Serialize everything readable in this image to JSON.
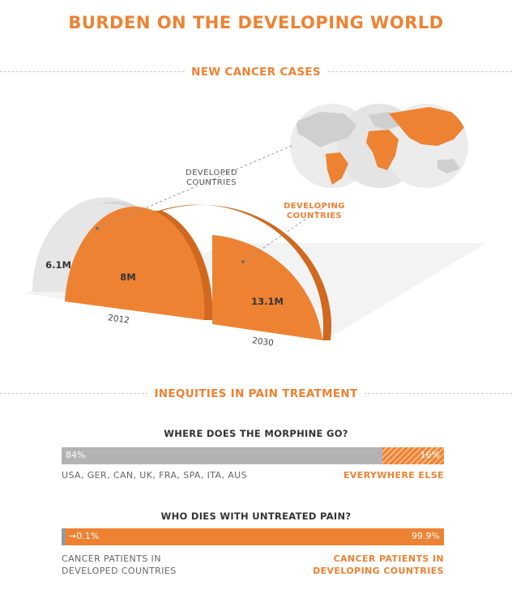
{
  "title": "BURDEN ON THE DEVELOPING WORLD",
  "sections": {
    "cases": "NEW CANCER CASES",
    "pain": "INEQUITIES IN PAIN TREATMENT"
  },
  "colors": {
    "accent": "#ee8233",
    "accent_dark": "#d0691f",
    "developed": "#e6e6e6",
    "bar_gray": "#b3b3b3"
  },
  "chart_data": [
    {
      "type": "semicircle-area",
      "title": "NEW CANCER CASES",
      "labels": {
        "developed": "DEVELOPED COUNTRIES",
        "developing": "DEVELOPING COUNTRIES"
      },
      "years": [
        {
          "year": "2012",
          "developed": 6.1,
          "developing": 8.0,
          "developed_label": "6.1M",
          "developing_label": "8M"
        },
        {
          "year": "2030",
          "developed": null,
          "developing": 13.1,
          "developing_label": "13.1M"
        }
      ]
    },
    {
      "type": "bar",
      "title": "WHERE DOES THE MORPHINE GO?",
      "segments": [
        {
          "name": "USA, GER, CAN, UK, FRA, SPA, ITA, AUS",
          "value": 84,
          "label": "84%"
        },
        {
          "name": "EVERYWHERE ELSE",
          "value": 16,
          "label": "16%"
        }
      ]
    },
    {
      "type": "bar",
      "title": "WHO DIES WITH UNTREATED PAIN?",
      "segments": [
        {
          "name": "CANCER PATIENTS IN DEVELOPED COUNTRIES",
          "name_lines": [
            "CANCER PATIENTS IN",
            "DEVELOPED COUNTRIES"
          ],
          "value": 0.1,
          "label": "0.1%"
        },
        {
          "name": "CANCER PATIENTS IN DEVELOPING COUNTRIES",
          "name_lines": [
            "CANCER PATIENTS IN",
            "DEVELOPING COUNTRIES"
          ],
          "value": 99.9,
          "label": "99.9%"
        }
      ]
    }
  ]
}
